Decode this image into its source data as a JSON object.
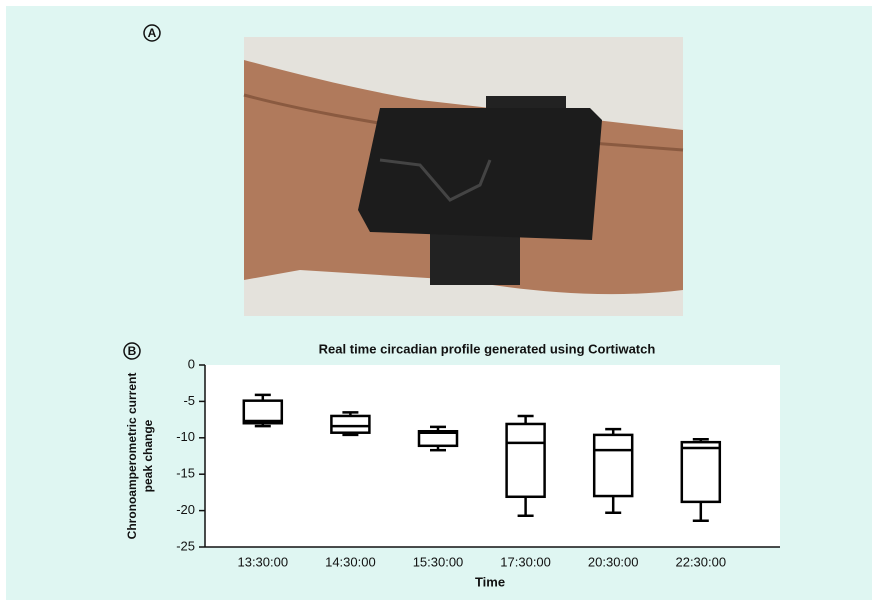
{
  "panel_labels": [
    "A",
    "B"
  ],
  "chart_data": {
    "type": "box",
    "title": "Real time circadian profile generated using Cortiwatch",
    "x_label": "Time",
    "y_label": [
      "Chronoamperometric current",
      "peak change"
    ],
    "categories": [
      "13:30:00",
      "14:30:00",
      "15:30:00",
      "17:30:00",
      "20:30:00",
      "22:30:00"
    ],
    "min": [
      -8.4,
      -9.6,
      -11.7,
      -20.7,
      -20.3,
      -21.4
    ],
    "q1": [
      -8.0,
      -9.3,
      -11.1,
      -18.1,
      -18.0,
      -18.8
    ],
    "median": [
      -7.7,
      -8.4,
      -9.3,
      -10.7,
      -11.7,
      -11.4
    ],
    "q3": [
      -4.9,
      -7.0,
      -9.1,
      -8.1,
      -9.6,
      -10.6
    ],
    "max": [
      -4.1,
      -6.5,
      -8.5,
      -7.0,
      -8.8,
      -10.2
    ],
    "color": "#000000",
    "ylim": [
      -25,
      0
    ],
    "yticks": [
      0,
      -5,
      -10,
      -15,
      -20,
      -25
    ]
  }
}
